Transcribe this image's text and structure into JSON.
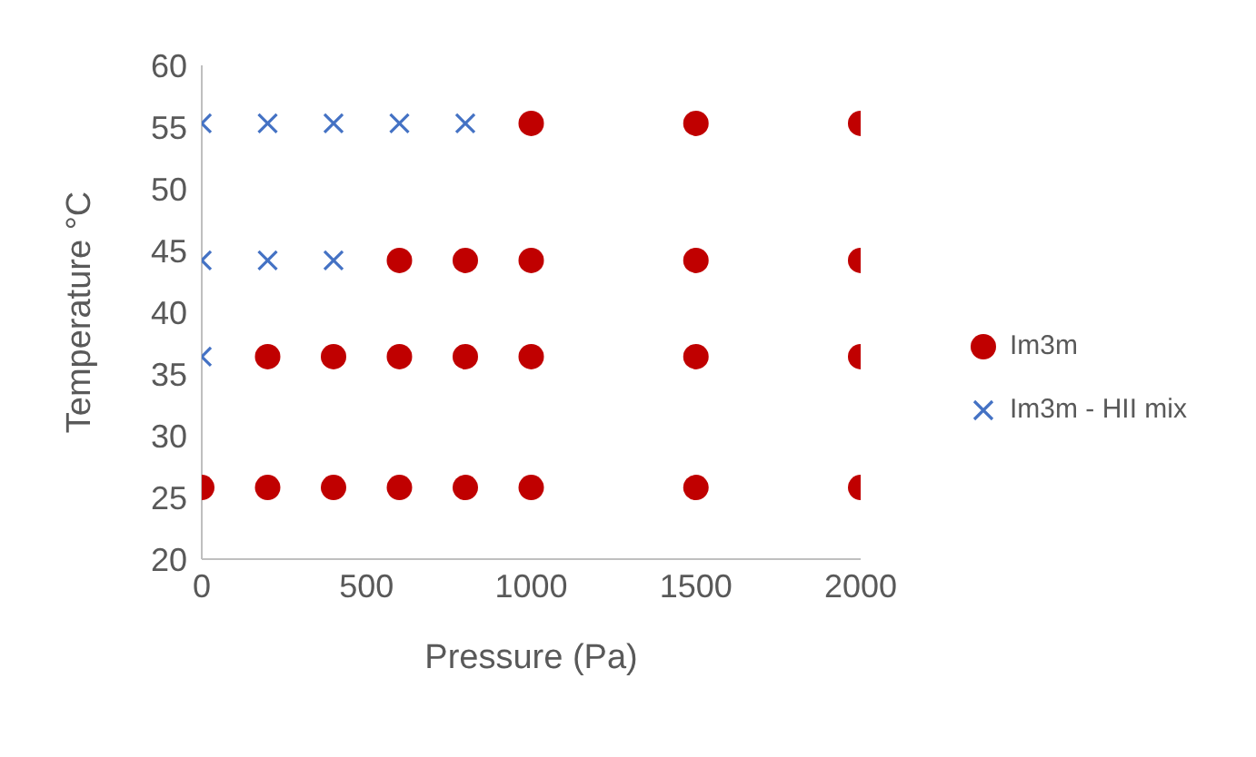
{
  "chart_data": {
    "type": "scatter",
    "xlabel": "Pressure (Pa)",
    "ylabel": "Temperature °C",
    "xlim": [
      0,
      2000
    ],
    "xticks": [
      0,
      500,
      1000,
      1500,
      2000
    ],
    "ylim": [
      20,
      60
    ],
    "yticks": [
      20,
      25,
      30,
      35,
      40,
      45,
      50,
      55,
      60
    ],
    "grid": false,
    "legend": "right",
    "series": [
      {
        "name": "Im3m",
        "color": "#c00000",
        "marker": "circle",
        "x": [
          0,
          200,
          400,
          600,
          800,
          1000,
          1500,
          2000,
          200,
          400,
          600,
          800,
          1000,
          1500,
          2000,
          600,
          800,
          1000,
          1500,
          2000,
          1000,
          1500,
          2000
        ],
        "values": [
          25.8,
          25.8,
          25.8,
          25.8,
          25.8,
          25.8,
          25.8,
          25.8,
          36.4,
          36.4,
          36.4,
          36.4,
          36.4,
          36.4,
          36.4,
          44.2,
          44.2,
          44.2,
          44.2,
          44.2,
          55.3,
          55.3,
          55.3
        ]
      },
      {
        "name": "Im3m - HII mix",
        "color": "#4472c4",
        "marker": "cross",
        "x": [
          0,
          200,
          400,
          600,
          800,
          0,
          200,
          400,
          0
        ],
        "values": [
          55.3,
          55.3,
          55.3,
          55.3,
          55.3,
          44.2,
          44.2,
          44.2,
          36.4
        ]
      }
    ]
  }
}
